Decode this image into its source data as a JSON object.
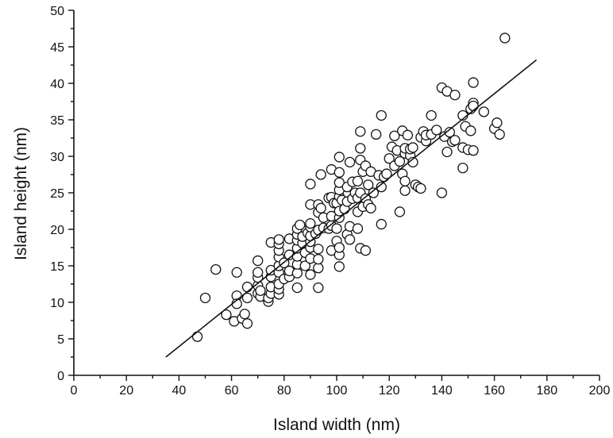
{
  "chart_data": {
    "type": "scatter",
    "title": "",
    "xlabel": "Island width (nm)",
    "ylabel": "Island height (nm)",
    "xlim": [
      0,
      200
    ],
    "ylim": [
      0,
      50
    ],
    "x_major_ticks": [
      0,
      20,
      40,
      60,
      80,
      100,
      120,
      140,
      160,
      180,
      200
    ],
    "y_major_ticks": [
      0,
      5,
      10,
      15,
      20,
      25,
      30,
      35,
      40,
      45,
      50
    ],
    "x_tick_labels": [
      "0",
      "20",
      "40",
      "60",
      "80",
      "100",
      "120",
      "140",
      "160",
      "180",
      "200"
    ],
    "y_tick_labels": [
      "0",
      "5",
      "10",
      "15",
      "20",
      "25",
      "30",
      "35",
      "40",
      "45",
      "50"
    ],
    "x_minor_step": 10,
    "y_minor_step": 2.5,
    "grid": false,
    "legend": "none",
    "marker": "open circle",
    "fit_line": {
      "type": "linear",
      "x": [
        35,
        176
      ],
      "y": [
        2.5,
        43.2
      ]
    },
    "points": [
      [
        47,
        5.3
      ],
      [
        50,
        10.6
      ],
      [
        54,
        14.5
      ],
      [
        58,
        8.3
      ],
      [
        61,
        7.4
      ],
      [
        62,
        10.9
      ],
      [
        62,
        9.8
      ],
      [
        62,
        14.1
      ],
      [
        64,
        7.8
      ],
      [
        65,
        8.4
      ],
      [
        66,
        7.1
      ],
      [
        66,
        10.6
      ],
      [
        66,
        12.1
      ],
      [
        70,
        11.2
      ],
      [
        70,
        12.3
      ],
      [
        70,
        13.4
      ],
      [
        70,
        14.1
      ],
      [
        70,
        15.7
      ],
      [
        71,
        10.8
      ],
      [
        71,
        11.6
      ],
      [
        74,
        10.1
      ],
      [
        74,
        10.6
      ],
      [
        75,
        11.2
      ],
      [
        75,
        12.1
      ],
      [
        75,
        13.5
      ],
      [
        75,
        14.4
      ],
      [
        75,
        18.2
      ],
      [
        78,
        11.1
      ],
      [
        78,
        11.8
      ],
      [
        78,
        12.5
      ],
      [
        78,
        14.1
      ],
      [
        78,
        15.0
      ],
      [
        78,
        16.2
      ],
      [
        78,
        17.1
      ],
      [
        78,
        18.0
      ],
      [
        78,
        18.6
      ],
      [
        80,
        13.2
      ],
      [
        80,
        15.4
      ],
      [
        82,
        13.5
      ],
      [
        82,
        14.3
      ],
      [
        82,
        16.5
      ],
      [
        82,
        18.7
      ],
      [
        85,
        12.0
      ],
      [
        85,
        14.0
      ],
      [
        85,
        15.2
      ],
      [
        85,
        16.3
      ],
      [
        85,
        17.4
      ],
      [
        85,
        18.5
      ],
      [
        85,
        19.3
      ],
      [
        85,
        20.1
      ],
      [
        86,
        20.6
      ],
      [
        87,
        18.1
      ],
      [
        87,
        19.0
      ],
      [
        88,
        15.0
      ],
      [
        88,
        16.8
      ],
      [
        89,
        19.5
      ],
      [
        90,
        13.8
      ],
      [
        90,
        16.0
      ],
      [
        90,
        17.5
      ],
      [
        90,
        18.3
      ],
      [
        90,
        19.1
      ],
      [
        90,
        20.3
      ],
      [
        90,
        20.8
      ],
      [
        90,
        23.4
      ],
      [
        90,
        26.2
      ],
      [
        92,
        19.4
      ],
      [
        93,
        12.0
      ],
      [
        93,
        14.7
      ],
      [
        93,
        15.9
      ],
      [
        93,
        17.3
      ],
      [
        93,
        19.9
      ],
      [
        93,
        22.3
      ],
      [
        93,
        23.4
      ],
      [
        94,
        22.9
      ],
      [
        94,
        27.5
      ],
      [
        95,
        20.2
      ],
      [
        95,
        21.6
      ],
      [
        97,
        20.1
      ],
      [
        97,
        24.3
      ],
      [
        98,
        17.1
      ],
      [
        98,
        20.5
      ],
      [
        98,
        21.8
      ],
      [
        98,
        24.4
      ],
      [
        98,
        28.2
      ],
      [
        99,
        23.6
      ],
      [
        100,
        18.4
      ],
      [
        100,
        20.1
      ],
      [
        100,
        23.6
      ],
      [
        101,
        14.9
      ],
      [
        101,
        16.5
      ],
      [
        101,
        17.5
      ],
      [
        101,
        21.6
      ],
      [
        101,
        22.5
      ],
      [
        101,
        24.5
      ],
      [
        101,
        25.4
      ],
      [
        101,
        26.4
      ],
      [
        101,
        27.8
      ],
      [
        101,
        29.9
      ],
      [
        102,
        24.0
      ],
      [
        103,
        22.8
      ],
      [
        104,
        19.3
      ],
      [
        104,
        23.8
      ],
      [
        104,
        25.8
      ],
      [
        105,
        18.6
      ],
      [
        105,
        20.4
      ],
      [
        105,
        29.2
      ],
      [
        106,
        24.2
      ],
      [
        106,
        26.5
      ],
      [
        107,
        25.0
      ],
      [
        108,
        20.1
      ],
      [
        108,
        22.4
      ],
      [
        108,
        24.3
      ],
      [
        108,
        26.6
      ],
      [
        109,
        17.4
      ],
      [
        109,
        25.0
      ],
      [
        109,
        29.5
      ],
      [
        109,
        31.1
      ],
      [
        109,
        33.4
      ],
      [
        110,
        23.1
      ],
      [
        110,
        27.9
      ],
      [
        111,
        17.1
      ],
      [
        111,
        24.2
      ],
      [
        111,
        28.7
      ],
      [
        112,
        23.4
      ],
      [
        112,
        26.1
      ],
      [
        113,
        22.9
      ],
      [
        113,
        27.9
      ],
      [
        114,
        25.0
      ],
      [
        115,
        33.0
      ],
      [
        116,
        27.4
      ],
      [
        117,
        20.7
      ],
      [
        117,
        25.8
      ],
      [
        117,
        35.6
      ],
      [
        118,
        27.2
      ],
      [
        119,
        27.6
      ],
      [
        120,
        29.7
      ],
      [
        121,
        31.3
      ],
      [
        122,
        28.7
      ],
      [
        122,
        32.8
      ],
      [
        123,
        30.8
      ],
      [
        124,
        22.4
      ],
      [
        124,
        29.3
      ],
      [
        125,
        27.6
      ],
      [
        125,
        33.5
      ],
      [
        126,
        25.3
      ],
      [
        126,
        26.6
      ],
      [
        126,
        30.4
      ],
      [
        126,
        31.1
      ],
      [
        127,
        32.9
      ],
      [
        128,
        30.1
      ],
      [
        128,
        31.0
      ],
      [
        129,
        29.2
      ],
      [
        129,
        31.2
      ],
      [
        130,
        26.1
      ],
      [
        131,
        25.8
      ],
      [
        132,
        25.6
      ],
      [
        132,
        32.6
      ],
      [
        133,
        33.4
      ],
      [
        134,
        32.1
      ],
      [
        134,
        32.9
      ],
      [
        136,
        33.0
      ],
      [
        136,
        35.6
      ],
      [
        138,
        33.6
      ],
      [
        140,
        25.0
      ],
      [
        140,
        39.4
      ],
      [
        141,
        32.7
      ],
      [
        142,
        38.9
      ],
      [
        142,
        30.6
      ],
      [
        143,
        33.3
      ],
      [
        144,
        32.0
      ],
      [
        145,
        38.4
      ],
      [
        145,
        32.2
      ],
      [
        148,
        28.4
      ],
      [
        148,
        31.2
      ],
      [
        148,
        35.6
      ],
      [
        149,
        34.1
      ],
      [
        150,
        30.9
      ],
      [
        151,
        33.5
      ],
      [
        151,
        36.5
      ],
      [
        152,
        37.3
      ],
      [
        152,
        36.9
      ],
      [
        152,
        40.1
      ],
      [
        152,
        30.8
      ],
      [
        156,
        36.1
      ],
      [
        160,
        33.8
      ],
      [
        161,
        34.6
      ],
      [
        162,
        33.0
      ],
      [
        164,
        46.2
      ]
    ]
  }
}
